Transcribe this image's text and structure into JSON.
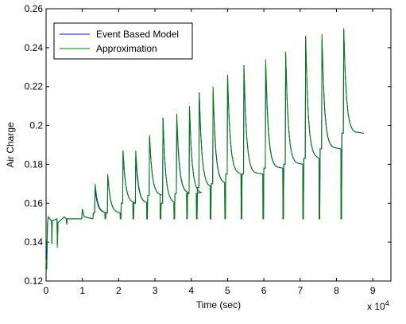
{
  "chart_data": {
    "type": "line",
    "title": "",
    "xlabel": "Time (sec)",
    "ylabel": "Air Charge",
    "x_multiplier_label": "x 10",
    "x_multiplier_exponent": "4",
    "xlim": [
      0,
      9.5
    ],
    "ylim": [
      0.12,
      0.26
    ],
    "xticks": [
      0,
      1,
      2,
      3,
      4,
      5,
      6,
      7,
      8,
      9
    ],
    "xtick_labels": [
      "0",
      "1",
      "2",
      "3",
      "4",
      "5",
      "6",
      "7",
      "8",
      "9"
    ],
    "yticks": [
      0.12,
      0.14,
      0.16,
      0.18,
      0.2,
      0.22,
      0.24,
      0.26
    ],
    "ytick_labels": [
      "0.12",
      "0.14",
      "0.16",
      "0.18",
      "0.2",
      "0.22",
      "0.24",
      "0.26"
    ],
    "grid": false,
    "legend_position": "top-left",
    "base_level": 0.152,
    "pulses": [
      {
        "t": 1.35,
        "peak": 0.17,
        "plateau": 0.155
      },
      {
        "t": 1.7,
        "peak": 0.175,
        "plateau": 0.155
      },
      {
        "t": 2.12,
        "peak": 0.186,
        "plateau": 0.16
      },
      {
        "t": 2.47,
        "peak": 0.187,
        "plateau": 0.16
      },
      {
        "t": 2.85,
        "peak": 0.195,
        "plateau": 0.164
      },
      {
        "t": 3.22,
        "peak": 0.203,
        "plateau": 0.16
      },
      {
        "t": 3.6,
        "peak": 0.206,
        "plateau": 0.165
      },
      {
        "t": 3.95,
        "peak": 0.21,
        "plateau": 0.165
      },
      {
        "t": 4.22,
        "peak": 0.216,
        "plateau": 0.168
      },
      {
        "t": 4.6,
        "peak": 0.22,
        "plateau": 0.17
      },
      {
        "t": 5.0,
        "peak": 0.226,
        "plateau": 0.175
      },
      {
        "t": 5.45,
        "peak": 0.23,
        "plateau": 0.175
      },
      {
        "t": 6.05,
        "peak": 0.234,
        "plateau": 0.178
      },
      {
        "t": 6.6,
        "peak": 0.238,
        "plateau": 0.18
      },
      {
        "t": 7.15,
        "peak": 0.245,
        "plateau": 0.183
      },
      {
        "t": 7.6,
        "peak": 0.247,
        "plateau": 0.188
      },
      {
        "t": 8.2,
        "peak": 0.25,
        "plateau": 0.196
      }
    ],
    "series": [
      {
        "name": "Event Based Model",
        "color": "#0000ff"
      },
      {
        "name": "Approximation",
        "color": "#008000"
      }
    ]
  }
}
